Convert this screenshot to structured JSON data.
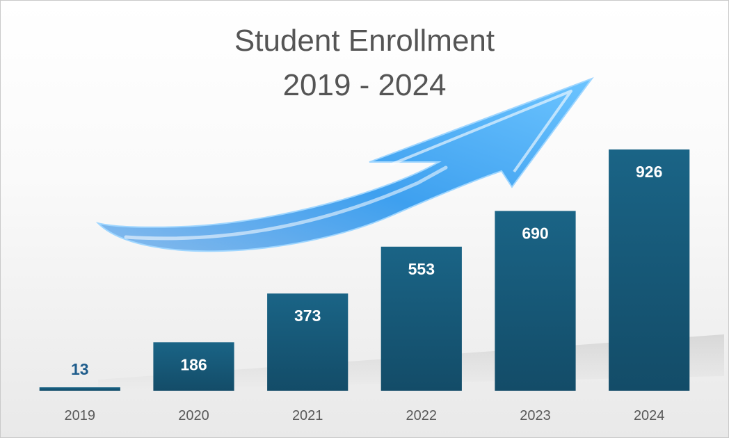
{
  "chart_data": {
    "type": "bar",
    "title": "Student Enrollment",
    "subtitle": "2019 - 2024",
    "categories": [
      "2019",
      "2020",
      "2021",
      "2022",
      "2023",
      "2024"
    ],
    "values": [
      13,
      186,
      373,
      553,
      690,
      926
    ],
    "xlabel": "",
    "ylabel": "",
    "ylim": [
      0,
      926
    ],
    "grid": false,
    "legend": "none",
    "data_labels": true,
    "decoration": "upward-trend-arrow"
  },
  "colors": {
    "bar": "#17597a",
    "bar_label_inside": "#ffffff",
    "bar_label_outside": "#1f5d8c",
    "title": "#555555",
    "tick": "#595959",
    "arrow": "#3ea0ef"
  }
}
